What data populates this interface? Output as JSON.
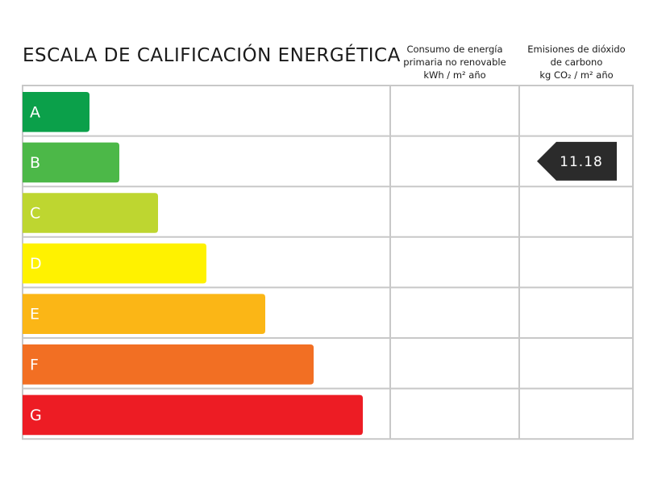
{
  "title": "ESCALA DE CALIFICACIÓN ENERGÉTICA",
  "columns": [
    {
      "lines": [
        "Consumo de energía",
        "primaria no renovable",
        "kWh / m² año"
      ]
    },
    {
      "lines": [
        "Emisiones de dióxido",
        "de carbono",
        "kg CO₂ / m² año"
      ]
    }
  ],
  "rows": [
    {
      "letter": "A",
      "color": "#0ba04a",
      "consumption": null,
      "emissions": null
    },
    {
      "letter": "B",
      "color": "#4cb848",
      "consumption": null,
      "emissions": "11.18"
    },
    {
      "letter": "C",
      "color": "#bed630",
      "consumption": null,
      "emissions": null
    },
    {
      "letter": "D",
      "color": "#fff200",
      "consumption": null,
      "emissions": null
    },
    {
      "letter": "E",
      "color": "#fbb616",
      "consumption": null,
      "emissions": null
    },
    {
      "letter": "F",
      "color": "#f26f23",
      "consumption": null,
      "emissions": null
    },
    {
      "letter": "G",
      "color": "#ed1c24",
      "consumption": null,
      "emissions": null
    }
  ]
}
